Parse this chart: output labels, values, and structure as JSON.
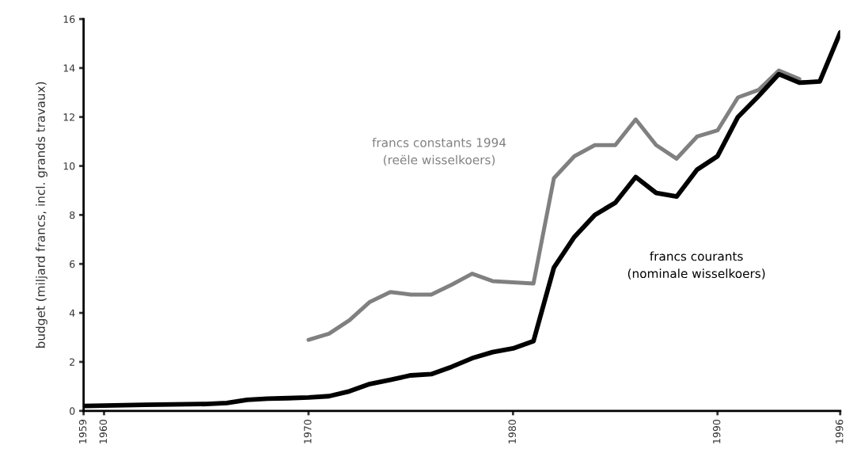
{
  "chart_data": {
    "type": "line",
    "ylabel": "budget (miljard francs, incl. grands travaux)",
    "xlim": [
      1959,
      1996
    ],
    "ylim": [
      0,
      16
    ],
    "xticks": [
      1959,
      1960,
      1970,
      1980,
      1990,
      1996
    ],
    "yticks": [
      0,
      2,
      4,
      6,
      8,
      10,
      12,
      14,
      16
    ],
    "grid": false,
    "legend": false,
    "series": [
      {
        "name": "francs constants 1994\n(reële wisselkoers)",
        "color": "#808080",
        "x": [
          1970,
          1971,
          1972,
          1973,
          1974,
          1975,
          1976,
          1977,
          1978,
          1979,
          1980,
          1981,
          1982,
          1983,
          1984,
          1985,
          1986,
          1987,
          1988,
          1989,
          1990,
          1991,
          1992,
          1993,
          1994
        ],
        "values": [
          2.9,
          3.15,
          3.7,
          4.45,
          4.85,
          4.75,
          4.75,
          5.15,
          5.6,
          5.3,
          5.25,
          5.2,
          9.5,
          10.4,
          10.85,
          10.85,
          11.9,
          10.85,
          10.3,
          11.2,
          11.45,
          12.8,
          13.1,
          13.9,
          13.55
        ]
      },
      {
        "name": "francs courants\n(nominale wisselkoers)",
        "color": "#000000",
        "x": [
          1959,
          1962,
          1965,
          1966,
          1967,
          1968,
          1969,
          1970,
          1971,
          1972,
          1973,
          1974,
          1975,
          1976,
          1977,
          1978,
          1979,
          1980,
          1981,
          1982,
          1983,
          1984,
          1985,
          1986,
          1987,
          1988,
          1989,
          1990,
          1991,
          1992,
          1993,
          1994,
          1995,
          1996
        ],
        "values": [
          0.2,
          0.25,
          0.28,
          0.32,
          0.45,
          0.5,
          0.52,
          0.55,
          0.6,
          0.8,
          1.1,
          1.27,
          1.45,
          1.5,
          1.8,
          2.15,
          2.4,
          2.55,
          2.85,
          5.85,
          7.1,
          8.0,
          8.5,
          9.55,
          8.9,
          8.75,
          9.85,
          10.4,
          12.0,
          12.85,
          13.75,
          13.4,
          13.45,
          15.45
        ]
      }
    ]
  }
}
